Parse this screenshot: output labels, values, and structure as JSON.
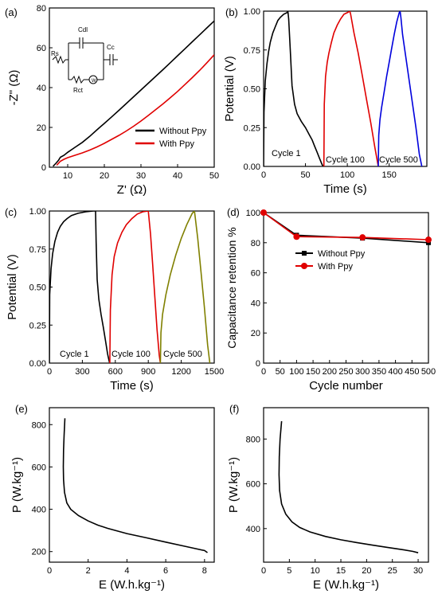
{
  "chart_data": [
    {
      "id": "a",
      "panel_label": "(a)",
      "type": "line",
      "xlabel": "Z' (Ω)",
      "ylabel": "-Z\" (Ω)",
      "xlim": [
        5,
        50
      ],
      "ylim": [
        0,
        80
      ],
      "xticks": [
        10,
        20,
        30,
        40,
        50
      ],
      "yticks": [
        0,
        20,
        40,
        60,
        80
      ],
      "legend_position": "bottom-right",
      "inset": {
        "description": "equivalent circuit",
        "labels": [
          "Cdl",
          "Cc",
          "Rs",
          "Rct",
          "W"
        ]
      },
      "series": [
        {
          "name": "Without Ppy",
          "color": "#000000",
          "x": [
            6,
            6.8,
            7.5,
            8,
            9,
            10,
            12,
            14,
            16,
            18,
            20,
            22,
            24,
            26,
            28,
            30,
            32,
            34,
            36,
            38,
            40,
            42,
            44,
            46,
            48,
            50
          ],
          "y": [
            0.5,
            2,
            3.5,
            5,
            6,
            7.5,
            10,
            12.5,
            15.5,
            18.8,
            22,
            25.3,
            28.6,
            32,
            35.4,
            38.8,
            42.2,
            45.6,
            49,
            52.5,
            56,
            59.5,
            63,
            66.5,
            70,
            73.5
          ]
        },
        {
          "name": "With Ppy",
          "color": "#e00000",
          "x": [
            7,
            7.5,
            8,
            9,
            10,
            12,
            14,
            16,
            18,
            20,
            22,
            24,
            26,
            28,
            30,
            32,
            34,
            36,
            38,
            40,
            42,
            44,
            46,
            48,
            50
          ],
          "y": [
            1,
            2,
            3,
            4,
            4.8,
            6,
            7.2,
            8.6,
            10.2,
            12,
            14,
            16,
            18.2,
            20.6,
            23.2,
            26,
            28.9,
            31.8,
            34.9,
            38.1,
            41.5,
            45,
            48.6,
            52.5,
            56.5
          ]
        }
      ]
    },
    {
      "id": "b",
      "panel_label": "(b)",
      "type": "line",
      "xlabel": "Time (s)",
      "ylabel": "Potential (V)",
      "xlim": [
        0,
        195
      ],
      "ylim": [
        0,
        1.0
      ],
      "xticks": [
        0,
        50,
        100,
        150
      ],
      "yticks": [
        0.0,
        0.25,
        0.5,
        0.75,
        1.0
      ],
      "yticklabels": [
        "0.00",
        "0.25",
        "0.50",
        "0.75",
        "1.00"
      ],
      "annotations": [
        "Cycle 1",
        "Cycle 100",
        "Cycle 500"
      ],
      "series": [
        {
          "color": "#000000",
          "x": [
            0,
            0.5,
            2,
            4,
            6,
            8,
            11,
            14,
            17,
            20,
            24,
            28,
            29,
            30,
            32,
            34,
            37,
            40,
            45,
            50,
            55,
            58,
            61,
            64,
            67,
            70,
            72
          ],
          "y": [
            0.0,
            0.35,
            0.55,
            0.66,
            0.74,
            0.8,
            0.86,
            0.9,
            0.94,
            0.96,
            0.98,
            0.99,
            1.0,
            0.95,
            0.74,
            0.52,
            0.4,
            0.34,
            0.29,
            0.25,
            0.2,
            0.17,
            0.13,
            0.09,
            0.05,
            0.01,
            0.0
          ]
        },
        {
          "color": "#e00000",
          "x": [
            72,
            72.5,
            74,
            76,
            78,
            81,
            84,
            88,
            92,
            96,
            100,
            103,
            104,
            108,
            113,
            118,
            123,
            128,
            133,
            137
          ],
          "y": [
            0.0,
            0.4,
            0.58,
            0.67,
            0.73,
            0.8,
            0.86,
            0.91,
            0.95,
            0.98,
            0.99,
            1.0,
            0.98,
            0.86,
            0.73,
            0.58,
            0.43,
            0.28,
            0.12,
            0.0
          ]
        },
        {
          "color": "#0000dd",
          "x": [
            137,
            137.5,
            139,
            141,
            144,
            147,
            150,
            153,
            156,
            159,
            162,
            163,
            164,
            166,
            170,
            174,
            178,
            182,
            186,
            189
          ],
          "y": [
            0.0,
            0.2,
            0.3,
            0.38,
            0.48,
            0.58,
            0.67,
            0.76,
            0.85,
            0.93,
            0.99,
            1.0,
            0.96,
            0.85,
            0.7,
            0.55,
            0.4,
            0.25,
            0.08,
            0.0
          ]
        }
      ]
    },
    {
      "id": "c",
      "panel_label": "(c)",
      "type": "line",
      "xlabel": "Time (s)",
      "ylabel": "Potential (V)",
      "xlim": [
        0,
        1500
      ],
      "ylim": [
        0,
        1.0
      ],
      "xticks": [
        0,
        300,
        600,
        900,
        1200,
        1500
      ],
      "yticks": [
        0.0,
        0.25,
        0.5,
        0.75,
        1.0
      ],
      "yticklabels": [
        "0.00",
        "0.25",
        "0.50",
        "0.75",
        "1.00"
      ],
      "annotations": [
        "Cycle 1",
        "Cycle 100",
        "Cycle 500"
      ],
      "series": [
        {
          "color": "#000000",
          "x": [
            0,
            3,
            15,
            30,
            50,
            75,
            100,
            130,
            160,
            200,
            260,
            330,
            400,
            420,
            425,
            435,
            450,
            470,
            490,
            510,
            530,
            545,
            550
          ],
          "y": [
            0.0,
            0.45,
            0.62,
            0.72,
            0.8,
            0.86,
            0.9,
            0.93,
            0.95,
            0.97,
            0.985,
            0.995,
            1.0,
            1.0,
            0.8,
            0.55,
            0.42,
            0.32,
            0.24,
            0.15,
            0.06,
            0.01,
            0.0
          ]
        },
        {
          "color": "#e00000",
          "x": [
            550,
            555,
            570,
            590,
            620,
            660,
            700,
            750,
            800,
            850,
            900,
            920,
            940,
            960,
            980,
            1000,
            1010
          ],
          "y": [
            0.0,
            0.35,
            0.58,
            0.7,
            0.79,
            0.86,
            0.91,
            0.95,
            0.98,
            0.995,
            1.0,
            0.85,
            0.65,
            0.43,
            0.22,
            0.05,
            0.0
          ]
        },
        {
          "color": "#808000",
          "x": [
            1010,
            1015,
            1030,
            1060,
            1100,
            1150,
            1200,
            1250,
            1300,
            1320,
            1350,
            1380,
            1410,
            1440,
            1460
          ],
          "y": [
            0.0,
            0.2,
            0.32,
            0.45,
            0.58,
            0.71,
            0.82,
            0.91,
            0.985,
            1.0,
            0.82,
            0.6,
            0.37,
            0.12,
            0.0
          ]
        }
      ]
    },
    {
      "id": "d",
      "panel_label": "(d)",
      "type": "line",
      "xlabel": "Cycle number",
      "ylabel": "Capacitance retention %",
      "xlim": [
        0,
        500
      ],
      "ylim": [
        0,
        100
      ],
      "xticks": [
        0,
        50,
        100,
        150,
        200,
        250,
        300,
        350,
        400,
        450,
        500
      ],
      "yticks": [
        0,
        20,
        40,
        60,
        80,
        100
      ],
      "legend_position": "center",
      "series": [
        {
          "name": "Without Ppy",
          "color": "#000000",
          "marker": "square",
          "x": [
            0,
            100,
            300,
            500
          ],
          "y": [
            100,
            85,
            83,
            80
          ]
        },
        {
          "name": "With Ppy",
          "color": "#e00000",
          "marker": "circle",
          "x": [
            0,
            100,
            300,
            500
          ],
          "y": [
            100,
            84,
            83.5,
            82
          ]
        }
      ]
    },
    {
      "id": "e",
      "panel_label": "(e)",
      "type": "line",
      "xlabel": "E (W.h.kg⁻¹)",
      "ylabel": "P (W.kg⁻¹)",
      "xlim": [
        0,
        8.5
      ],
      "ylim": [
        150,
        880
      ],
      "xticks": [
        0,
        2,
        4,
        6,
        8
      ],
      "yticks": [
        200,
        400,
        600,
        800
      ],
      "series": [
        {
          "color": "#000000",
          "x": [
            0.8,
            0.76,
            0.73,
            0.72,
            0.73,
            0.78,
            0.9,
            1.1,
            1.5,
            2.0,
            2.5,
            3.0,
            4.0,
            5.0,
            6.0,
            7.0,
            8.0,
            8.15
          ],
          "y": [
            830,
            750,
            680,
            600,
            540,
            480,
            430,
            400,
            370,
            345,
            325,
            310,
            285,
            265,
            245,
            225,
            205,
            195
          ]
        }
      ]
    },
    {
      "id": "f",
      "panel_label": "(f)",
      "type": "line",
      "xlabel": "E (W.h.kg⁻¹)",
      "ylabel": "P (W.kg⁻¹)",
      "xlim": [
        0,
        32
      ],
      "ylim": [
        250,
        940
      ],
      "xticks": [
        0,
        5,
        10,
        15,
        20,
        25,
        30
      ],
      "yticks": [
        400,
        600,
        800
      ],
      "series": [
        {
          "color": "#000000",
          "x": [
            3.5,
            3.2,
            3.05,
            3.0,
            3.1,
            3.5,
            4.3,
            5.5,
            7.0,
            9.0,
            12,
            15,
            18,
            21,
            24,
            27,
            29,
            30
          ],
          "y": [
            880,
            800,
            720,
            640,
            570,
            510,
            465,
            430,
            405,
            385,
            365,
            350,
            338,
            327,
            316,
            306,
            298,
            292
          ]
        }
      ]
    }
  ]
}
